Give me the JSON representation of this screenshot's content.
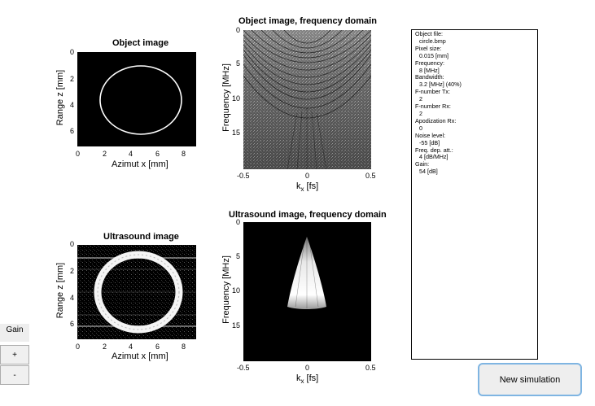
{
  "plots": {
    "object_image": {
      "title": "Object image",
      "xlabel": "Azimut x [mm]",
      "ylabel": "Range z [mm]",
      "xticks": [
        "0",
        "2",
        "4",
        "6",
        "8"
      ],
      "yticks": [
        "0",
        "2",
        "4",
        "6"
      ]
    },
    "object_freq": {
      "title": "Object image, frequency domain",
      "xlabel_main": "k",
      "xlabel_sub": "x",
      "xlabel_rest": " [fs]",
      "ylabel": "Frequency [MHz]",
      "xticks": [
        "-0.5",
        "0",
        "0.5"
      ],
      "yticks": [
        "0",
        "5",
        "10",
        "15"
      ]
    },
    "ultrasound_image": {
      "title": "Ultrasound image",
      "xlabel": "Azimut x [mm]",
      "ylabel": "Range z [mm]",
      "xticks": [
        "0",
        "2",
        "4",
        "6",
        "8"
      ],
      "yticks": [
        "0",
        "2",
        "4",
        "6"
      ]
    },
    "ultrasound_freq": {
      "title": "Ultrasound image, frequency domain",
      "xlabel_main": "k",
      "xlabel_sub": "x",
      "xlabel_rest": " [fs]",
      "ylabel": "Frequency [MHz]",
      "xticks": [
        "-0.5",
        "0",
        "0.5"
      ],
      "yticks": [
        "0",
        "5",
        "10",
        "15"
      ]
    }
  },
  "info": {
    "object_file_label": "Object file:",
    "object_file_value": "circle.bmp",
    "pixel_size_label": "Pixel size:",
    "pixel_size_value": "0.015 [mm]",
    "frequency_label": "Frequency:",
    "frequency_value": "8 [MHz]",
    "bandwidth_label": "Bandwidth:",
    "bandwidth_value": "3.2 [MHz] (40%)",
    "fnumber_tx_label": "F-number Tx:",
    "fnumber_tx_value": "2",
    "fnumber_rx_label": "F-number Rx:",
    "fnumber_rx_value": "2",
    "apod_rx_label": "Apodization Rx:",
    "apod_rx_value": "0",
    "noise_label": "Noise level:",
    "noise_value": "-55 [dB]",
    "att_label": "Freq. dep. att.:",
    "att_value": "4 [dB/MHz]",
    "gain_label": "Gain:",
    "gain_value": "54 [dB]"
  },
  "controls": {
    "gain_label": "Gain",
    "plus_label": "+",
    "minus_label": "-",
    "new_sim_label": "New simulation"
  }
}
